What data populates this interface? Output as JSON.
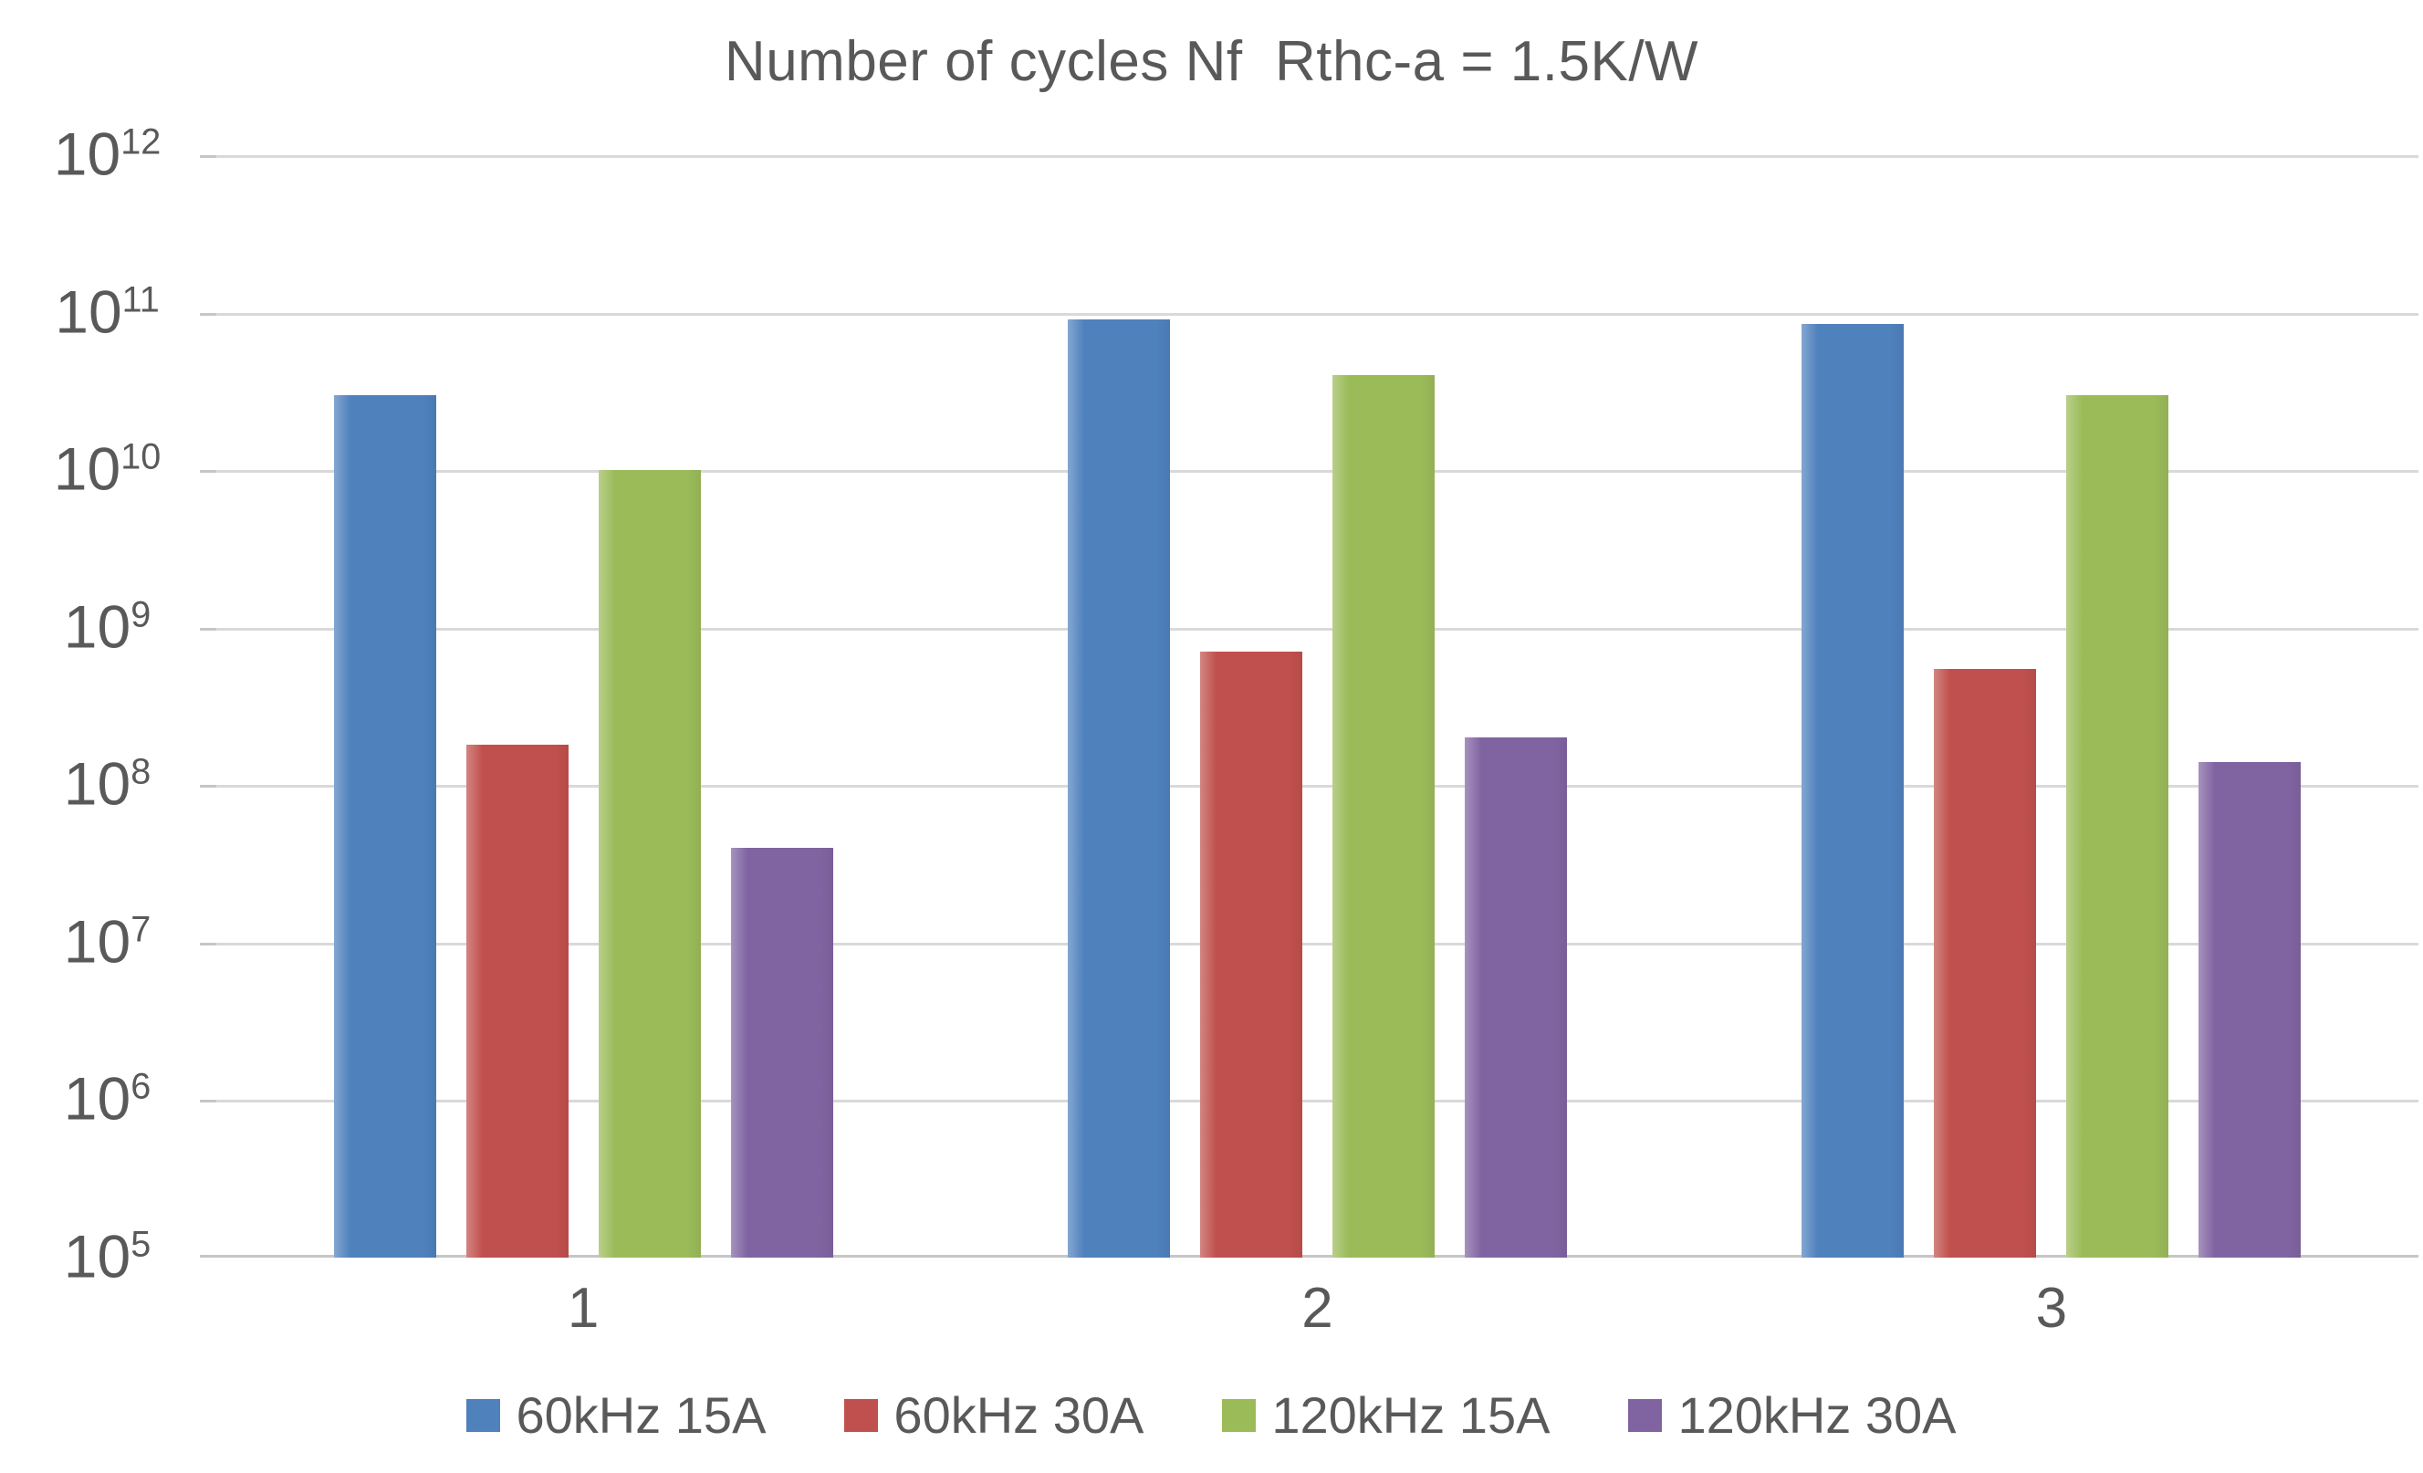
{
  "chart_data": {
    "type": "bar",
    "scale": "log",
    "title": "Number of cycles Nf  Rthc-a = 1.5K/W",
    "xlabel": "",
    "ylabel": "",
    "categories": [
      "1",
      "2",
      "3"
    ],
    "series": [
      {
        "name": "60kHz 15A",
        "color": "#4F81BD",
        "values": [
          30000000000.0,
          90000000000.0,
          85000000000.0
        ]
      },
      {
        "name": "60kHz 30A",
        "color": "#C0504D",
        "values": [
          180000000.0,
          700000000.0,
          550000000.0
        ]
      },
      {
        "name": "120kHz 15A",
        "color": "#9BBB59",
        "values": [
          10000000000.0,
          40000000000.0,
          30000000000.0
        ]
      },
      {
        "name": "120kHz 30A",
        "color": "#8064A2",
        "values": [
          40000000.0,
          200000000.0,
          140000000.0
        ]
      }
    ],
    "y_ticks": [
      {
        "base": "10",
        "exp": "12"
      },
      {
        "base": "10",
        "exp": "11"
      },
      {
        "base": "10",
        "exp": "10"
      },
      {
        "base": "10",
        "exp": "9"
      },
      {
        "base": "10",
        "exp": "8"
      },
      {
        "base": "10",
        "exp": "7"
      },
      {
        "base": "10",
        "exp": "6"
      },
      {
        "base": "10",
        "exp": "5"
      }
    ],
    "ylim_exponents": [
      5,
      12
    ],
    "grid": true,
    "legend_position": "bottom",
    "text_color": "#595959",
    "gridline_color": "#d9d9d9",
    "background_color": "#ffffff"
  }
}
